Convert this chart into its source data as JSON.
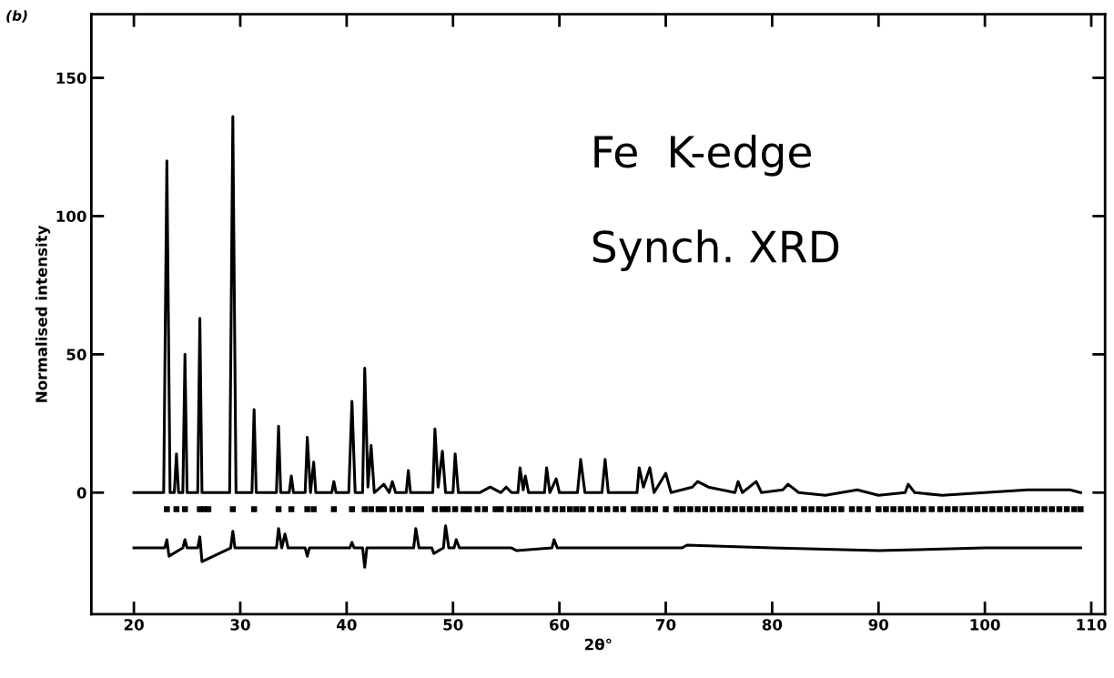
{
  "chart_data": {
    "type": "line",
    "xlabel": "2θ°",
    "ylabel": "Normalised intensity",
    "xlim": [
      16,
      111.3
    ],
    "ylim": [
      -44,
      173
    ],
    "xticks": [
      20,
      30,
      40,
      50,
      60,
      70,
      80,
      90,
      100,
      110
    ],
    "yticks": [
      0,
      50,
      100,
      150
    ],
    "grid": false,
    "legend": false,
    "annotations": [
      "(b)",
      "Fe  K-edge",
      "Synch. XRD"
    ],
    "series": [
      {
        "color": "#000000",
        "x": [
          20,
          22.8,
          23.1,
          23.4,
          23.8,
          24.0,
          24.2,
          24.6,
          24.8,
          25.0,
          26.0,
          26.2,
          26.4,
          29.0,
          29.3,
          29.6,
          31.1,
          31.3,
          31.5,
          33.4,
          33.6,
          33.8,
          34.6,
          34.8,
          35.0,
          36.1,
          36.3,
          36.6,
          36.9,
          37.1,
          38.6,
          38.8,
          39.0,
          40.2,
          40.5,
          40.8,
          41.5,
          41.7,
          42.0,
          42.3,
          42.6,
          43.5,
          44.0,
          44.3,
          44.6,
          45.6,
          45.8,
          46.0,
          48.1,
          48.3,
          48.6,
          49.0,
          49.3,
          50.0,
          50.2,
          50.5,
          52.5,
          53.5,
          54.5,
          55.0,
          55.5,
          56.1,
          56.3,
          56.6,
          56.8,
          57.1,
          58.6,
          58.8,
          59.1,
          59.7,
          60.0,
          61.7,
          62.0,
          62.4,
          64.0,
          64.3,
          64.6,
          67.3,
          67.5,
          67.9,
          68.5,
          68.9,
          70.0,
          70.5,
          72.5,
          73.0,
          74.0,
          76.5,
          76.8,
          77.2,
          78.5,
          79.0,
          81.0,
          81.5,
          82.5,
          85,
          88,
          90,
          92.5,
          92.8,
          93.4,
          96,
          100,
          104,
          107,
          108,
          109
        ],
        "values": [
          0,
          0,
          120,
          0,
          0,
          14,
          0,
          0,
          50,
          0,
          0,
          63,
          0,
          0,
          136,
          0,
          0,
          30,
          0,
          0,
          24,
          0,
          0,
          6,
          0,
          0,
          20,
          0,
          11,
          0,
          0,
          4,
          0,
          0,
          33,
          0,
          0,
          45,
          2,
          17,
          0,
          3,
          0,
          4,
          0,
          0,
          8,
          0,
          0,
          23,
          2,
          15,
          0,
          0,
          14,
          0,
          0,
          2,
          0,
          2,
          0,
          0,
          9,
          1,
          6,
          0,
          0,
          9,
          0,
          5,
          0,
          0,
          12,
          0,
          0,
          12,
          0,
          0,
          9,
          2,
          9,
          0,
          7,
          0,
          2,
          4,
          2,
          0,
          4,
          0,
          4,
          0,
          1,
          3,
          0,
          -1,
          1,
          -1,
          0,
          3,
          0,
          -1,
          0,
          1,
          1,
          1,
          0
        ]
      },
      {
        "type": "scatter",
        "marker": "square",
        "color": "#000000",
        "x": [
          23.1,
          24.0,
          24.8,
          26.2,
          26.6,
          27.0,
          29.3,
          31.3,
          33.6,
          34.8,
          36.3,
          36.9,
          38.8,
          40.5,
          41.7,
          42.3,
          43.0,
          43.5,
          44.3,
          45.0,
          45.8,
          46.5,
          47.0,
          48.3,
          49.0,
          49.5,
          50.2,
          51.0,
          51.5,
          52.3,
          53.0,
          54.0,
          54.5,
          55.3,
          56.0,
          56.6,
          57.2,
          58.0,
          58.8,
          59.6,
          60.3,
          61.0,
          61.6,
          62.2,
          63.0,
          63.8,
          64.5,
          65.3,
          66.0,
          67.0,
          67.6,
          68.3,
          69.0,
          70.0,
          71.0,
          71.6,
          72.3,
          73.0,
          73.7,
          74.4,
          75.1,
          75.8,
          76.5,
          77.2,
          77.9,
          78.6,
          79.3,
          80.0,
          80.7,
          81.4,
          82.1,
          83.0,
          83.7,
          84.4,
          85.1,
          85.8,
          86.5,
          87.5,
          88.2,
          89.0,
          90.0,
          90.7,
          91.4,
          92.1,
          92.8,
          93.5,
          94.2,
          95.0,
          95.8,
          96.5,
          97.2,
          97.9,
          98.6,
          99.3,
          100.0,
          100.7,
          101.4,
          102.1,
          102.8,
          103.5,
          104.2,
          104.9,
          105.6,
          106.3,
          107.0,
          107.7,
          108.4,
          109.0
        ],
        "values": [
          -6,
          -6,
          -6,
          -6,
          -6,
          -6,
          -6,
          -6,
          -6,
          -6,
          -6,
          -6,
          -6,
          -6,
          -6,
          -6,
          -6,
          -6,
          -6,
          -6,
          -6,
          -6,
          -6,
          -6,
          -6,
          -6,
          -6,
          -6,
          -6,
          -6,
          -6,
          -6,
          -6,
          -6,
          -6,
          -6,
          -6,
          -6,
          -6,
          -6,
          -6,
          -6,
          -6,
          -6,
          -6,
          -6,
          -6,
          -6,
          -6,
          -6,
          -6,
          -6,
          -6,
          -6,
          -6,
          -6,
          -6,
          -6,
          -6,
          -6,
          -6,
          -6,
          -6,
          -6,
          -6,
          -6,
          -6,
          -6,
          -6,
          -6,
          -6,
          -6,
          -6,
          -6,
          -6,
          -6,
          -6,
          -6,
          -6,
          -6,
          -6,
          -6,
          -6,
          -6,
          -6,
          -6,
          -6,
          -6,
          -6,
          -6,
          -6,
          -6,
          -6,
          -6,
          -6,
          -6,
          -6,
          -6,
          -6,
          -6,
          -6,
          -6,
          -6,
          -6,
          -6,
          -6,
          -6,
          -6
        ]
      },
      {
        "color": "#000000",
        "x": [
          20,
          22.9,
          23.1,
          23.3,
          24.6,
          24.8,
          25.0,
          26.0,
          26.2,
          26.4,
          29.1,
          29.3,
          29.5,
          33.4,
          33.6,
          33.9,
          34.2,
          34.5,
          36.1,
          36.3,
          36.5,
          40.3,
          40.5,
          40.7,
          41.5,
          41.7,
          41.9,
          46.3,
          46.5,
          46.8,
          48.0,
          48.2,
          49.1,
          49.3,
          49.6,
          50.1,
          50.3,
          50.6,
          55.5,
          56.0,
          59.3,
          59.5,
          59.8,
          71.5,
          72.0,
          80,
          90,
          100,
          109
        ],
        "values": [
          -20,
          -20,
          -17,
          -23,
          -20,
          -17,
          -20,
          -20,
          -16,
          -25,
          -20,
          -14,
          -20,
          -20,
          -13,
          -20,
          -15,
          -20,
          -20,
          -23,
          -20,
          -20,
          -18,
          -20,
          -20,
          -27,
          -20,
          -20,
          -13,
          -20,
          -20,
          -22,
          -20,
          -12,
          -20,
          -20,
          -17,
          -20,
          -20,
          -21,
          -20,
          -17,
          -20,
          -20,
          -19,
          -20,
          -21,
          -20,
          -20
        ]
      }
    ]
  }
}
